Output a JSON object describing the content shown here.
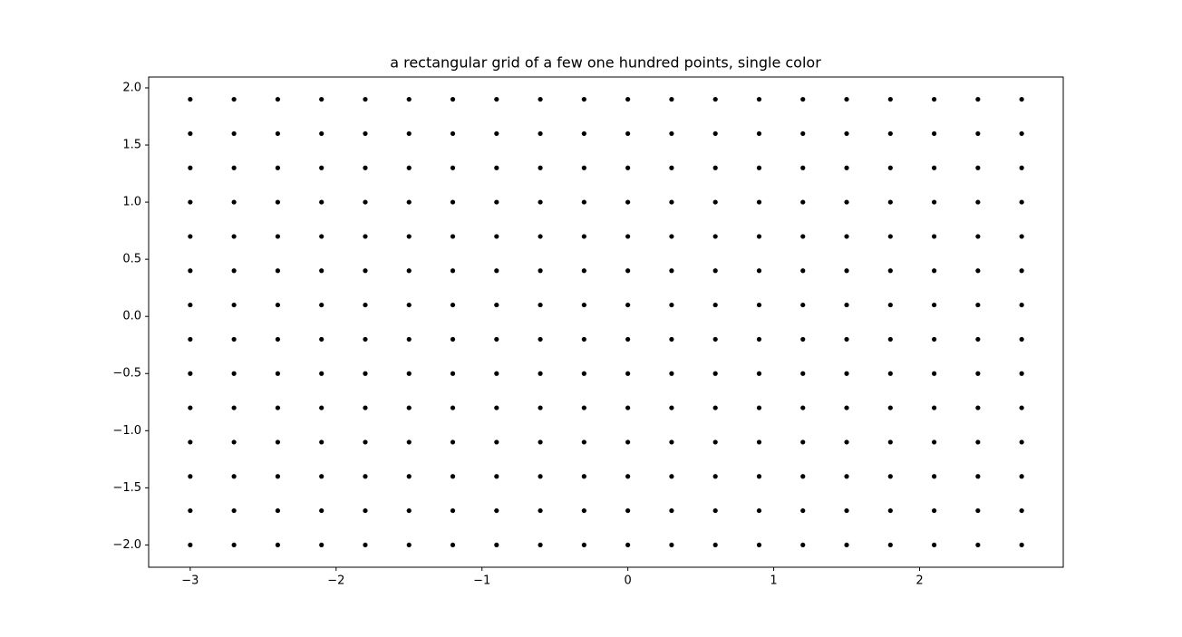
{
  "chart_data": {
    "type": "scatter",
    "title": "a rectangular grid of a few one hundred points, single color",
    "color": "#000000",
    "xlim": [
      -3.285,
      2.985
    ],
    "ylim": [
      -2.195,
      2.095
    ],
    "xticks": [
      {
        "value": -3,
        "label": "−3"
      },
      {
        "value": -2,
        "label": "−2"
      },
      {
        "value": -1,
        "label": "−1"
      },
      0,
      1,
      2
    ],
    "yticks": [
      {
        "value": -2,
        "label": "−2.0"
      },
      {
        "value": -1.5,
        "label": "−1.5"
      },
      {
        "value": -1,
        "label": "−1.0"
      },
      {
        "value": -0.5,
        "label": "−0.5"
      },
      {
        "value": 0,
        "label": "0.0"
      },
      0.5,
      {
        "value": 1,
        "label": "1.0"
      },
      1.5,
      {
        "value": 2,
        "label": "2.0"
      }
    ],
    "x": [
      -3.0,
      -2.7,
      -2.4,
      -2.1,
      -1.8,
      -1.5,
      -1.2,
      -0.9,
      -0.6,
      -0.3,
      0.0,
      0.3,
      0.6,
      0.9,
      1.2,
      1.5,
      1.8,
      2.1,
      2.4,
      2.7,
      -3.0,
      -2.7,
      -2.4,
      -2.1,
      -1.8,
      -1.5,
      -1.2,
      -0.9,
      -0.6,
      -0.3,
      0.0,
      0.3,
      0.6,
      0.9,
      1.2,
      1.5,
      1.8,
      2.1,
      2.4,
      2.7,
      -3.0,
      -2.7,
      -2.4,
      -2.1,
      -1.8,
      -1.5,
      -1.2,
      -0.9,
      -0.6,
      -0.3,
      0.0,
      0.3,
      0.6,
      0.9,
      1.2,
      1.5,
      1.8,
      2.1,
      2.4,
      2.7,
      -3.0,
      -2.7,
      -2.4,
      -2.1,
      -1.8,
      -1.5,
      -1.2,
      -0.9,
      -0.6,
      -0.3,
      0.0,
      0.3,
      0.6,
      0.9,
      1.2,
      1.5,
      1.8,
      2.1,
      2.4,
      2.7,
      -3.0,
      -2.7,
      -2.4,
      -2.1,
      -1.8,
      -1.5,
      -1.2,
      -0.9,
      -0.6,
      -0.3,
      0.0,
      0.3,
      0.6,
      0.9,
      1.2,
      1.5,
      1.8,
      2.1,
      2.4,
      2.7,
      -3.0,
      -2.7,
      -2.4,
      -2.1,
      -1.8,
      -1.5,
      -1.2,
      -0.9,
      -0.6,
      -0.3,
      0.0,
      0.3,
      0.6,
      0.9,
      1.2,
      1.5,
      1.8,
      2.1,
      2.4,
      2.7,
      -3.0,
      -2.7,
      -2.4,
      -2.1,
      -1.8,
      -1.5,
      -1.2,
      -0.9,
      -0.6,
      -0.3,
      0.0,
      0.3,
      0.6,
      0.9,
      1.2,
      1.5,
      1.8,
      2.1,
      2.4,
      2.7,
      -3.0,
      -2.7,
      -2.4,
      -2.1,
      -1.8,
      -1.5,
      -1.2,
      -0.9,
      -0.6,
      -0.3,
      0.0,
      0.3,
      0.6,
      0.9,
      1.2,
      1.5,
      1.8,
      2.1,
      2.4,
      2.7,
      -3.0,
      -2.7,
      -2.4,
      -2.1,
      -1.8,
      -1.5,
      -1.2,
      -0.9,
      -0.6,
      -0.3,
      0.0,
      0.3,
      0.6,
      0.9,
      1.2,
      1.5,
      1.8,
      2.1,
      2.4,
      2.7,
      -3.0,
      -2.7,
      -2.4,
      -2.1,
      -1.8,
      -1.5,
      -1.2,
      -0.9,
      -0.6,
      -0.3,
      0.0,
      0.3,
      0.6,
      0.9,
      1.2,
      1.5,
      1.8,
      2.1,
      2.4,
      2.7,
      -3.0,
      -2.7,
      -2.4,
      -2.1,
      -1.8,
      -1.5,
      -1.2,
      -0.9,
      -0.6,
      -0.3,
      0.0,
      0.3,
      0.6,
      0.9,
      1.2,
      1.5,
      1.8,
      2.1,
      2.4,
      2.7,
      -3.0,
      -2.7,
      -2.4,
      -2.1,
      -1.8,
      -1.5,
      -1.2,
      -0.9,
      -0.6,
      -0.3,
      0.0,
      0.3,
      0.6,
      0.9,
      1.2,
      1.5,
      1.8,
      2.1,
      2.4,
      2.7,
      -3.0,
      -2.7,
      -2.4,
      -2.1,
      -1.8,
      -1.5,
      -1.2,
      -0.9,
      -0.6,
      -0.3,
      0.0,
      0.3,
      0.6,
      0.9,
      1.2,
      1.5,
      1.8,
      2.1,
      2.4,
      2.7,
      -3.0,
      -2.7,
      -2.4,
      -2.1,
      -1.8,
      -1.5,
      -1.2,
      -0.9,
      -0.6,
      -0.3,
      0.0,
      0.3,
      0.6,
      0.9,
      1.2,
      1.5,
      1.8,
      2.1,
      2.4,
      2.7
    ],
    "values": [
      -2.0,
      -2.0,
      -2.0,
      -2.0,
      -2.0,
      -2.0,
      -2.0,
      -2.0,
      -2.0,
      -2.0,
      -2.0,
      -2.0,
      -2.0,
      -2.0,
      -2.0,
      -2.0,
      -2.0,
      -2.0,
      -2.0,
      -2.0,
      -1.7,
      -1.7,
      -1.7,
      -1.7,
      -1.7,
      -1.7,
      -1.7,
      -1.7,
      -1.7,
      -1.7,
      -1.7,
      -1.7,
      -1.7,
      -1.7,
      -1.7,
      -1.7,
      -1.7,
      -1.7,
      -1.7,
      -1.7,
      -1.4,
      -1.4,
      -1.4,
      -1.4,
      -1.4,
      -1.4,
      -1.4,
      -1.4,
      -1.4,
      -1.4,
      -1.4,
      -1.4,
      -1.4,
      -1.4,
      -1.4,
      -1.4,
      -1.4,
      -1.4,
      -1.4,
      -1.4,
      -1.1,
      -1.1,
      -1.1,
      -1.1,
      -1.1,
      -1.1,
      -1.1,
      -1.1,
      -1.1,
      -1.1,
      -1.1,
      -1.1,
      -1.1,
      -1.1,
      -1.1,
      -1.1,
      -1.1,
      -1.1,
      -1.1,
      -1.1,
      -0.8,
      -0.8,
      -0.8,
      -0.8,
      -0.8,
      -0.8,
      -0.8,
      -0.8,
      -0.8,
      -0.8,
      -0.8,
      -0.8,
      -0.8,
      -0.8,
      -0.8,
      -0.8,
      -0.8,
      -0.8,
      -0.8,
      -0.8,
      -0.5,
      -0.5,
      -0.5,
      -0.5,
      -0.5,
      -0.5,
      -0.5,
      -0.5,
      -0.5,
      -0.5,
      -0.5,
      -0.5,
      -0.5,
      -0.5,
      -0.5,
      -0.5,
      -0.5,
      -0.5,
      -0.5,
      -0.5,
      -0.2,
      -0.2,
      -0.2,
      -0.2,
      -0.2,
      -0.2,
      -0.2,
      -0.2,
      -0.2,
      -0.2,
      -0.2,
      -0.2,
      -0.2,
      -0.2,
      -0.2,
      -0.2,
      -0.2,
      -0.2,
      -0.2,
      -0.2,
      0.1,
      0.1,
      0.1,
      0.1,
      0.1,
      0.1,
      0.1,
      0.1,
      0.1,
      0.1,
      0.1,
      0.1,
      0.1,
      0.1,
      0.1,
      0.1,
      0.1,
      0.1,
      0.1,
      0.1,
      0.4,
      0.4,
      0.4,
      0.4,
      0.4,
      0.4,
      0.4,
      0.4,
      0.4,
      0.4,
      0.4,
      0.4,
      0.4,
      0.4,
      0.4,
      0.4,
      0.4,
      0.4,
      0.4,
      0.4,
      0.7,
      0.7,
      0.7,
      0.7,
      0.7,
      0.7,
      0.7,
      0.7,
      0.7,
      0.7,
      0.7,
      0.7,
      0.7,
      0.7,
      0.7,
      0.7,
      0.7,
      0.7,
      0.7,
      0.7,
      1.0,
      1.0,
      1.0,
      1.0,
      1.0,
      1.0,
      1.0,
      1.0,
      1.0,
      1.0,
      1.0,
      1.0,
      1.0,
      1.0,
      1.0,
      1.0,
      1.0,
      1.0,
      1.0,
      1.0,
      1.3,
      1.3,
      1.3,
      1.3,
      1.3,
      1.3,
      1.3,
      1.3,
      1.3,
      1.3,
      1.3,
      1.3,
      1.3,
      1.3,
      1.3,
      1.3,
      1.3,
      1.3,
      1.3,
      1.3,
      1.6,
      1.6,
      1.6,
      1.6,
      1.6,
      1.6,
      1.6,
      1.6,
      1.6,
      1.6,
      1.6,
      1.6,
      1.6,
      1.6,
      1.6,
      1.6,
      1.6,
      1.6,
      1.6,
      1.6,
      1.9,
      1.9,
      1.9,
      1.9,
      1.9,
      1.9,
      1.9,
      1.9,
      1.9,
      1.9,
      1.9,
      1.9,
      1.9,
      1.9,
      1.9,
      1.9,
      1.9,
      1.9,
      1.9,
      1.9
    ]
  }
}
